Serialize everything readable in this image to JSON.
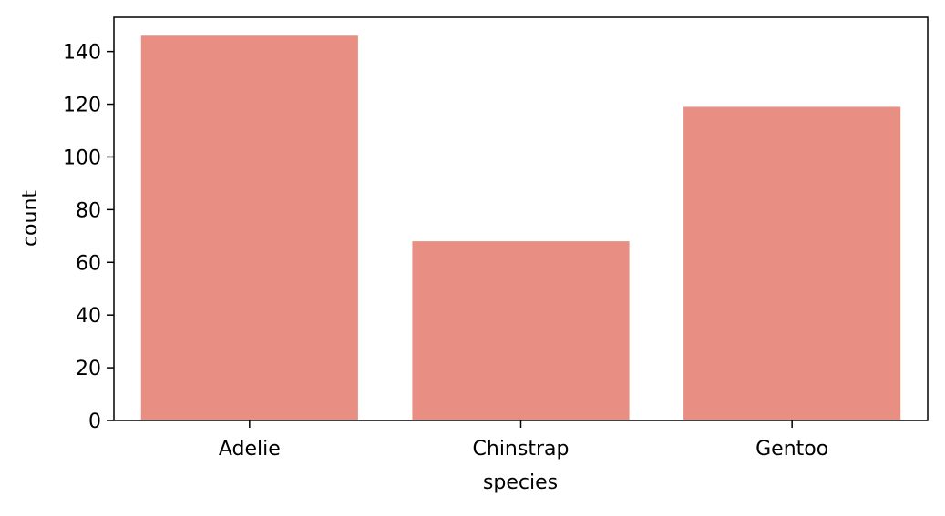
{
  "chart_data": {
    "type": "bar",
    "categories": [
      "Adelie",
      "Chinstrap",
      "Gentoo"
    ],
    "values": [
      146,
      68,
      119
    ],
    "xlabel": "species",
    "ylabel": "count",
    "ylim": [
      0,
      153
    ],
    "yticks": [
      0,
      20,
      40,
      60,
      80,
      100,
      120,
      140
    ],
    "grid": false,
    "bar_color": "#e88e83",
    "axis_color": "#000000"
  }
}
